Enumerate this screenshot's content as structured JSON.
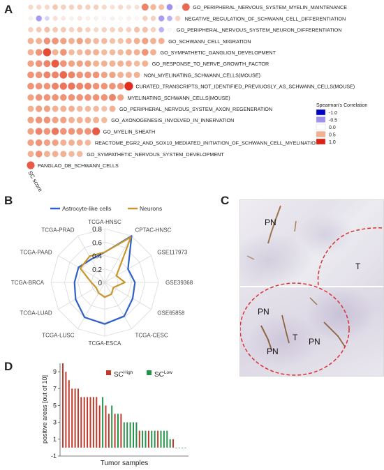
{
  "panel_labels": {
    "a": "A",
    "b": "B",
    "c": "C",
    "d": "D"
  },
  "colors": {
    "scale_neg1": "#0000c8",
    "scale_neg05": "#a090f0",
    "scale_0": "#ffffff",
    "scale_05": "#f4b090",
    "scale_1": "#e02010",
    "astro": "#2f5fc8",
    "neurons": "#c8962a",
    "sc_high": "#c0392b",
    "sc_low": "#27934a"
  },
  "chart_data": [
    {
      "type": "heatmap",
      "title": "",
      "column_label": "SC score",
      "legend_title": "Spearman's Correlation",
      "legend_ticks": [
        "-1.0",
        "-0.5",
        "0.0",
        "0.5",
        "1.0"
      ],
      "rows": [
        {
          "label": "GO_PERIPHERAL_NERVOUS_SYSTEM_MYELIN_MAINTENANCE",
          "values": [
            0.25,
            0.25,
            0.25,
            0.35,
            0.3,
            0.3,
            0.3,
            0.3,
            0.3,
            0.25,
            0.2,
            0.25,
            0.2,
            0.2,
            0.65,
            0.45,
            0.4,
            -0.5,
            0.05,
            0.75
          ]
        },
        {
          "label": "NEGATIVE_REGULATION_OF_SCHWANN_CELL_DIFFERENTIATION",
          "values": [
            0.1,
            -0.45,
            -0.2,
            0.2,
            0.15,
            0.1,
            0.15,
            0.1,
            0.1,
            0.05,
            0.1,
            0.05,
            0.1,
            0.05,
            0.3,
            0.3,
            -0.45,
            -0.35,
            0.3
          ]
        },
        {
          "label": "GO_PERIPHERAL_NERVOUS_SYSTEM_NEURON_DIFFERENTIATION",
          "values": [
            0.3,
            0.35,
            0.4,
            0.35,
            0.35,
            0.3,
            0.35,
            0.3,
            0.25,
            0.3,
            0.3,
            0.3,
            0.3,
            0.4,
            0.4,
            0.3,
            -0.35,
            0.05
          ]
        },
        {
          "label": "GO_SCHWANN_CELL_MIGRATION",
          "values": [
            0.5,
            0.5,
            0.6,
            0.6,
            0.55,
            0.5,
            0.55,
            0.5,
            0.45,
            0.45,
            0.4,
            0.4,
            0.45,
            0.5,
            0.55,
            0.5,
            0.5
          ]
        },
        {
          "label": "GO_SYMPATHETIC_GANGLION_DEVELOPMENT",
          "values": [
            0.5,
            0.6,
            0.85,
            0.5,
            0.6,
            0.45,
            0.45,
            0.5,
            0.5,
            0.45,
            0.45,
            0.45,
            0.5,
            0.5,
            0.6,
            0.5
          ]
        },
        {
          "label": "GO_RESPONSE_TO_NERVE_GROWTH_FACTOR",
          "values": [
            0.55,
            0.6,
            0.65,
            0.8,
            0.6,
            0.55,
            0.55,
            0.55,
            0.5,
            0.5,
            0.5,
            0.5,
            0.5,
            0.45,
            0.5
          ]
        },
        {
          "label": "NON_MYELINATING_SCHWANN_CELLS(MOUSE)",
          "values": [
            0.6,
            0.6,
            0.65,
            0.65,
            0.75,
            0.65,
            0.6,
            0.6,
            0.6,
            0.55,
            0.55,
            0.5,
            0.5,
            0.5
          ]
        },
        {
          "label": "CURATED_TRANSCRIPTS_NOT_IDENTIFIED_PREVIUOSLY_AS_SCHWANN_CELLS(MOUSE)",
          "values": [
            0.6,
            0.6,
            0.6,
            0.65,
            0.7,
            0.7,
            0.65,
            0.65,
            0.6,
            0.6,
            0.6,
            0.6,
            0.95
          ]
        },
        {
          "label": "MYELINATING_SCHWANN_CELLS(MOUSE)",
          "values": [
            0.55,
            0.6,
            0.6,
            0.6,
            0.6,
            0.6,
            0.6,
            0.6,
            0.6,
            0.6,
            0.65,
            0.55
          ]
        },
        {
          "label": "GO_PERIPHERAL_NERVOUS_SYSTEM_AXON_REGENERATION",
          "values": [
            0.5,
            0.55,
            0.55,
            0.5,
            0.5,
            0.5,
            0.45,
            0.45,
            0.45,
            0.4,
            0.5
          ]
        },
        {
          "label": "GO_AXONOGENESIS_INVOLVED_IN_INNERVATION",
          "values": [
            0.55,
            0.6,
            0.6,
            0.55,
            0.55,
            0.5,
            0.5,
            0.5,
            0.5,
            0.45
          ]
        },
        {
          "label": "GO_MYELIN_SHEATH",
          "values": [
            0.55,
            0.65,
            0.6,
            0.7,
            0.6,
            0.6,
            0.6,
            0.6,
            0.8
          ]
        },
        {
          "label": "REACTOME_EGR2_AND_SOX10_MEDIATED_INITIATION_OF_SCHWANN_CELL_MYELINATION",
          "values": [
            0.55,
            0.6,
            0.55,
            0.55,
            0.5,
            0.5,
            0.5,
            0.45
          ]
        },
        {
          "label": "GO_SYMPATHETIC_NERVOUS_SYSTEM_DEVELOPMENT",
          "values": [
            0.5,
            0.6,
            0.5,
            0.5,
            0.5,
            0.45,
            0.45
          ]
        },
        {
          "label": "PANGLAO_DB_SCHWANN_CELLS",
          "values": [
            0.8
          ]
        }
      ]
    },
    {
      "type": "radar",
      "title": "",
      "axes": [
        "TCGA-HNSC",
        "CPTAC-HNSC",
        "GSE117973",
        "GSE39368",
        "GSE65858",
        "TCGA-CESC",
        "TCGA-ESCA",
        "TCGA-LUSC",
        "TCGA-LUAD",
        "TCGA-BRCA",
        "TCGA-PAAD",
        "TCGA-PRAD"
      ],
      "rlim": [
        0,
        0.8
      ],
      "ticks": [
        "0",
        "0.2",
        "0.4",
        "0.6",
        "0.8"
      ],
      "legend_position": "top",
      "series": [
        {
          "name": "Astrocyte-like cells",
          "values": [
            0.45,
            0.8,
            0.4,
            0.45,
            0.48,
            0.58,
            0.62,
            0.6,
            0.5,
            0.45,
            0.45,
            0.4
          ]
        },
        {
          "name": "Neurons",
          "values": [
            0.45,
            0.78,
            0.2,
            0.3,
            0.15,
            0.2,
            0.22,
            0.18,
            0.15,
            0.2,
            0.42,
            0.45
          ]
        }
      ]
    },
    {
      "type": "bar",
      "title": "",
      "xlabel": "Tumor samples",
      "ylabel": "positive areas [out of 10]",
      "ylim": [
        -1,
        10
      ],
      "yticks": [
        -1,
        1,
        3,
        5,
        7,
        9
      ],
      "legend": [
        {
          "name": "SC",
          "sup": "High"
        },
        {
          "name": "SC",
          "sup": "Low"
        }
      ],
      "values": [
        10,
        9,
        8,
        7,
        7,
        7,
        6,
        6,
        6,
        6,
        6,
        6,
        5,
        6,
        5,
        4,
        5,
        4,
        4,
        4,
        3,
        3,
        3,
        3,
        3,
        2,
        2,
        2,
        2,
        2,
        2,
        2,
        2,
        2,
        2,
        1,
        1,
        0,
        0,
        0,
        0
      ],
      "groups": [
        "H",
        "H",
        "H",
        "H",
        "H",
        "H",
        "H",
        "H",
        "H",
        "H",
        "H",
        "H",
        "H",
        "L",
        "H",
        "H",
        "L",
        "H",
        "L",
        "H",
        "L",
        "L",
        "L",
        "L",
        "L",
        "H",
        "L",
        "L",
        "H",
        "L",
        "L",
        "H",
        "L",
        "L",
        "L",
        "L",
        "H",
        "L",
        "L",
        "L",
        "L"
      ]
    }
  ],
  "histology": {
    "labels": [
      {
        "text": "PN"
      },
      {
        "text": "T"
      },
      {
        "text": "PN"
      },
      {
        "text": "T"
      },
      {
        "text": "PN"
      },
      {
        "text": "PN"
      }
    ]
  }
}
